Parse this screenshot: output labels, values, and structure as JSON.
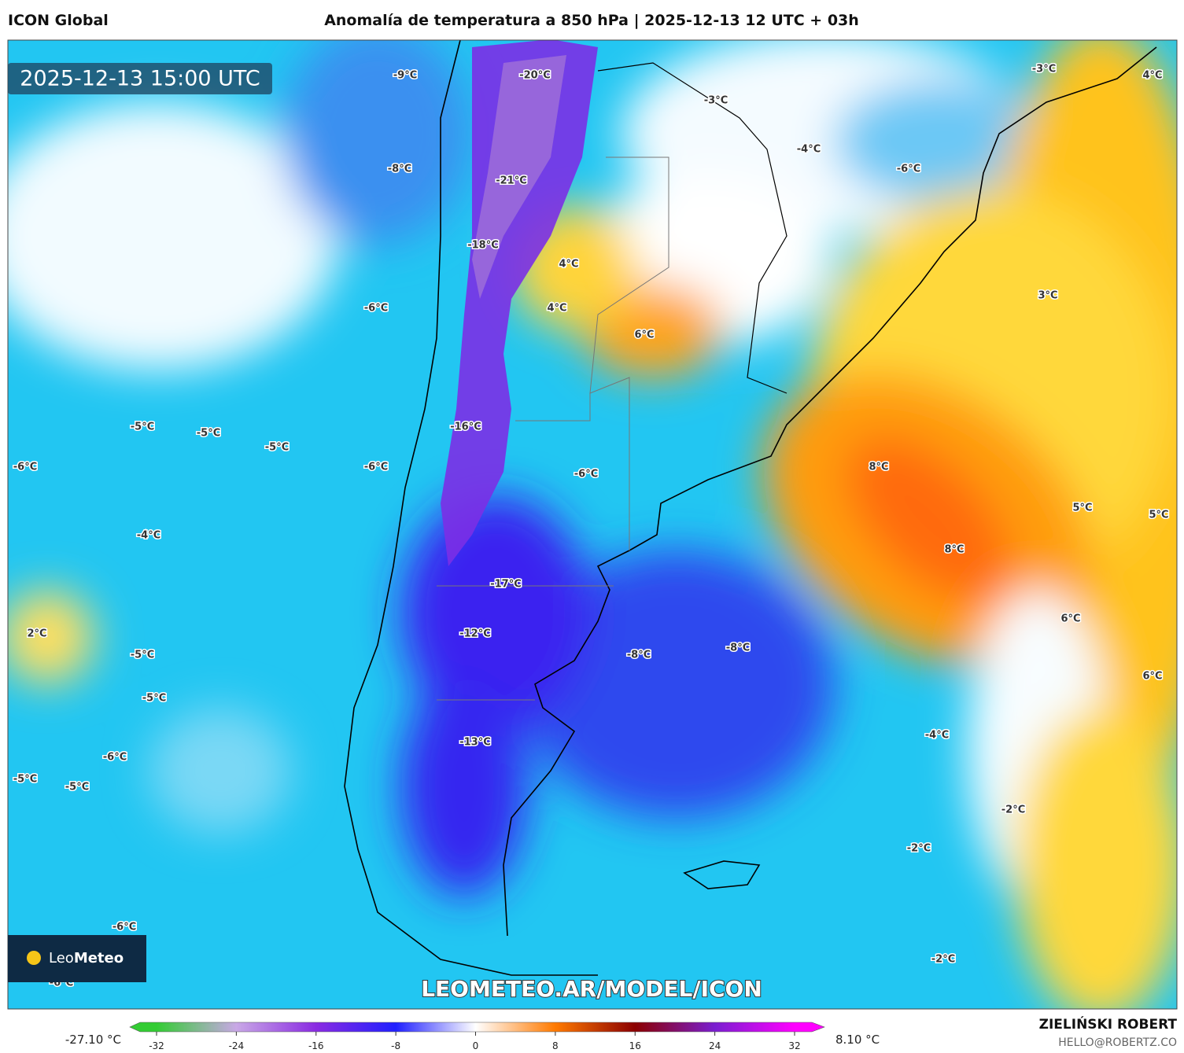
{
  "header": {
    "model": "ICON Global",
    "title": "Anomalía de temperatura a 850 hPa | 2025-12-13 12 UTC + 03h"
  },
  "timestamp": "2025-12-13 15:00 UTC",
  "map_labels": [
    "-9°C",
    "-20°C",
    "-3°C",
    "-3°C",
    "4°C",
    "-4°C",
    "-6°C",
    "-8°C",
    "-21°C",
    "-18°C",
    "4°C",
    "4°C",
    "3°C",
    "-6°C",
    "6°C",
    "-5°C",
    "-5°C",
    "-5°C",
    "-16°C",
    "-6°C",
    "-6°C",
    "-6°C",
    "8°C",
    "5°C",
    "5°C",
    "-4°C",
    "8°C",
    "-17°C",
    "2°C",
    "-12°C",
    "-5°C",
    "-8°C",
    "-8°C",
    "6°C",
    "6°C",
    "-5°C",
    "-13°C",
    "-4°C",
    "-6°C",
    "-5°C",
    "-5°C",
    "-2°C",
    "-2°C",
    "-6°C",
    "-2°C",
    "-6°C"
  ],
  "watermark": "LEOMETEO.AR/MODEL/ICON",
  "logo": {
    "name_light": "Leo",
    "name_bold": "Meteo"
  },
  "credit": {
    "author": "ZIELIŃSKI ROBERT",
    "email": "HELLO@ROBERTZ.CO"
  },
  "colorbar": {
    "min_label": "-27.10 °C",
    "max_label": "8.10 °C",
    "ticks": [
      -32,
      -24,
      -16,
      -8,
      0,
      8,
      16,
      24,
      32
    ],
    "colors": [
      "#33cc33",
      "#c9a8e6",
      "#8a2be2",
      "#2020ff",
      "#ffffff",
      "#ff7a00",
      "#8b0000",
      "#7a1fd0",
      "#ff00ff"
    ]
  }
}
